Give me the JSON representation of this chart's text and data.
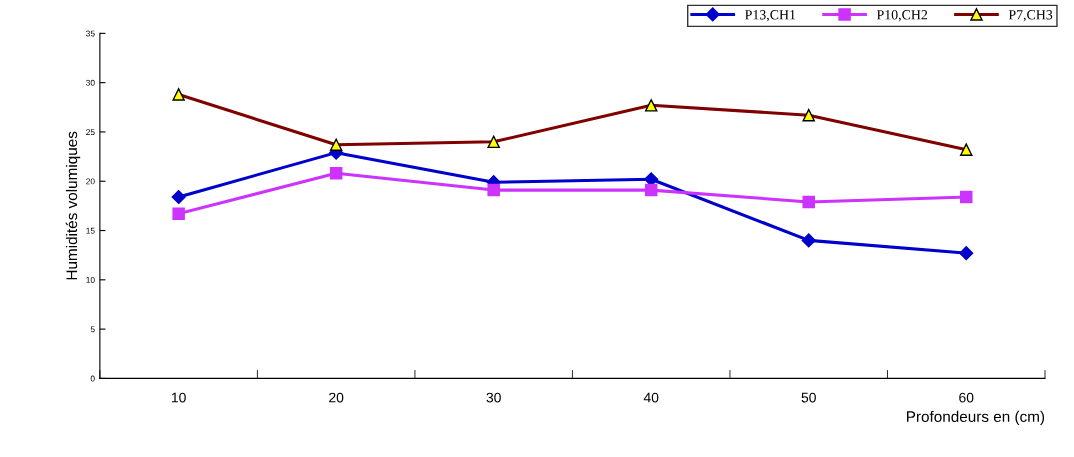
{
  "chart_data": {
    "type": "line",
    "xlabel": "Profondeurs en (cm)",
    "ylabel": "Humidités volumiques",
    "categories": [
      "10",
      "20",
      "30",
      "40",
      "50",
      "60"
    ],
    "series": [
      {
        "name": "P13,CH1",
        "color": "#0000cc",
        "marker": "diamond",
        "values": [
          18.4,
          22.9,
          19.9,
          20.2,
          14.0,
          12.7
        ]
      },
      {
        "name": "P10,CH2",
        "color": "#cc33ff",
        "marker": "square",
        "values": [
          16.7,
          20.8,
          19.1,
          19.1,
          17.9,
          18.4
        ]
      },
      {
        "name": "P7,CH3",
        "color": "#800000",
        "marker": "triangle",
        "values": [
          28.8,
          23.7,
          24.0,
          27.7,
          26.7,
          23.2
        ]
      }
    ],
    "ylim": [
      0,
      35
    ],
    "yticks": [
      0,
      5,
      10,
      15,
      20,
      25,
      30,
      35
    ],
    "grid": false,
    "legend": "top right",
    "line_style": "solid"
  }
}
